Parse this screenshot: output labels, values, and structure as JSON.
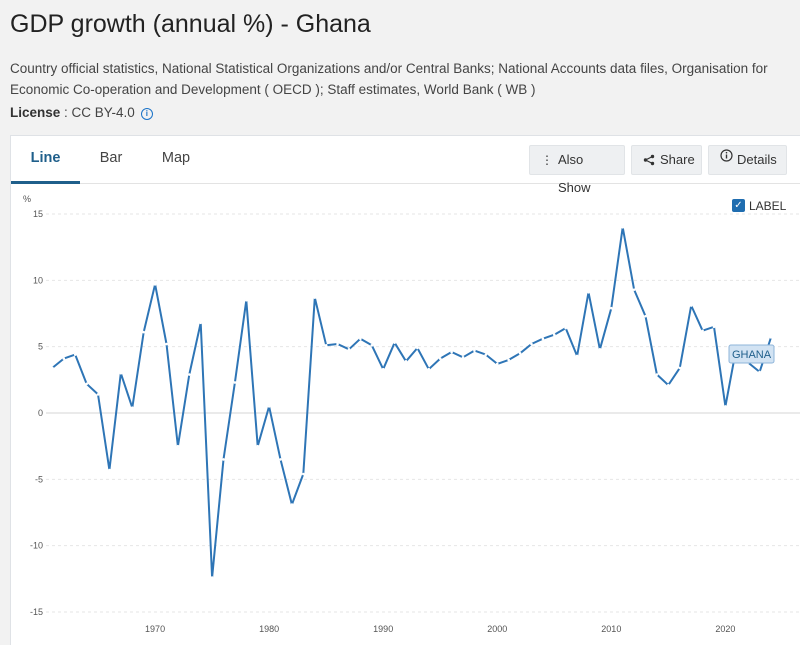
{
  "title": "GDP growth (annual %) - Ghana",
  "source": "Country official statistics, National Statistical Organizations and/or Central Banks; National Accounts data files, Organisation for Economic Co-operation and Development ( OECD ); Staff estimates, World Bank ( WB )",
  "license": {
    "label": "License",
    "value": " : CC BY-4.0"
  },
  "tabs": [
    {
      "label": "Line",
      "active": true
    },
    {
      "label": "Bar",
      "active": false
    },
    {
      "label": "Map",
      "active": false
    }
  ],
  "buttons": {
    "also_show": "Also Show",
    "share": "Share",
    "details": "Details"
  },
  "label_toggle": "LABEL",
  "colors": {
    "line": "#2e75b6",
    "accent": "#1f5f8b",
    "series_label_bg": "#d2e3f3"
  },
  "chart_data": {
    "type": "line",
    "title": "",
    "ylabel": "%",
    "ylim": [
      -15,
      15
    ],
    "yticks": [
      15,
      10,
      5,
      0,
      -5,
      -10,
      -15
    ],
    "xlim": [
      1960,
      2024
    ],
    "xticks": [
      1970,
      1980,
      1990,
      2000,
      2010,
      2020
    ],
    "grid": true,
    "series": [
      {
        "name": "GHANA",
        "x": [
          1961,
          1962,
          1963,
          1964,
          1965,
          1966,
          1967,
          1968,
          1969,
          1970,
          1971,
          1972,
          1973,
          1974,
          1975,
          1976,
          1977,
          1978,
          1979,
          1980,
          1981,
          1982,
          1983,
          1984,
          1985,
          1986,
          1987,
          1988,
          1989,
          1990,
          1991,
          1992,
          1993,
          1994,
          1995,
          1996,
          1997,
          1998,
          1999,
          2000,
          2001,
          2002,
          2003,
          2004,
          2005,
          2006,
          2007,
          2008,
          2009,
          2010,
          2011,
          2012,
          2013,
          2014,
          2015,
          2016,
          2017,
          2018,
          2019,
          2020,
          2021,
          2022,
          2023,
          2024
        ],
        "y": [
          3.4,
          4.1,
          4.4,
          2.2,
          1.4,
          -4.3,
          3.0,
          0.4,
          6.1,
          9.7,
          5.2,
          -2.5,
          2.9,
          6.8,
          -12.4,
          -3.5,
          2.3,
          8.5,
          -2.5,
          0.5,
          -3.5,
          -6.9,
          -4.6,
          8.7,
          5.1,
          5.2,
          4.8,
          5.6,
          5.1,
          3.3,
          5.3,
          3.9,
          4.9,
          3.3,
          4.1,
          4.6,
          4.2,
          4.7,
          4.4,
          3.7,
          4.0,
          4.5,
          5.2,
          5.6,
          5.9,
          6.4,
          4.3,
          9.1,
          4.8,
          7.9,
          14.0,
          9.3,
          7.3,
          2.9,
          2.1,
          3.4,
          8.1,
          6.2,
          6.5,
          0.5,
          5.1,
          3.8,
          3.1,
          5.7
        ]
      }
    ]
  }
}
